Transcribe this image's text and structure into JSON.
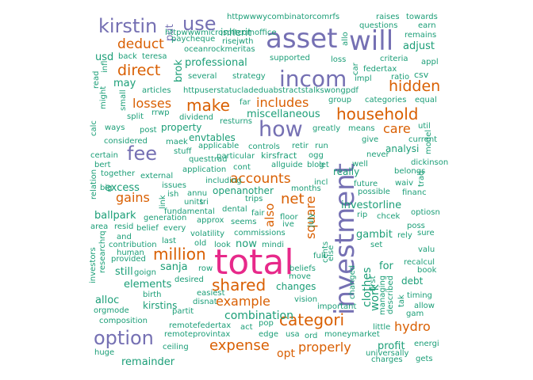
{
  "colors": {
    "teal": "#1b9e77",
    "orange": "#d95f02",
    "purple": "#7570b3",
    "pink": "#e7298a"
  },
  "words": [
    {
      "t": "total",
      "c": "pink"
    },
    {
      "t": "investment",
      "c": "purple"
    },
    {
      "t": "asset",
      "c": "purple"
    },
    {
      "t": "will",
      "c": "purple"
    },
    {
      "t": "incom",
      "c": "purple"
    },
    {
      "t": "how",
      "c": "purple"
    },
    {
      "t": "kirstin",
      "c": "purple"
    },
    {
      "t": "fee",
      "c": "purple"
    },
    {
      "t": "option",
      "c": "purple"
    },
    {
      "t": "use",
      "c": "purple"
    },
    {
      "t": "put",
      "c": "purple"
    },
    {
      "t": "million",
      "c": "orange"
    },
    {
      "t": "shared",
      "c": "orange"
    },
    {
      "t": "categori",
      "c": "orange"
    },
    {
      "t": "household",
      "c": "orange"
    },
    {
      "t": "hidden",
      "c": "orange"
    },
    {
      "t": "make",
      "c": "orange"
    },
    {
      "t": "direct",
      "c": "orange"
    },
    {
      "t": "deduct",
      "c": "orange"
    },
    {
      "t": "expense",
      "c": "orange"
    },
    {
      "t": "accounts",
      "c": "orange"
    },
    {
      "t": "net",
      "c": "orange"
    },
    {
      "t": "square",
      "c": "orange"
    },
    {
      "t": "includes",
      "c": "orange"
    },
    {
      "t": "losses",
      "c": "orange"
    },
    {
      "t": "gains",
      "c": "orange"
    },
    {
      "t": "example",
      "c": "orange"
    },
    {
      "t": "properly",
      "c": "orange"
    },
    {
      "t": "hydro",
      "c": "orange"
    },
    {
      "t": "care",
      "c": "orange"
    },
    {
      "t": "also",
      "c": "orange"
    },
    {
      "t": "opt",
      "c": "orange"
    },
    {
      "t": "profit",
      "c": "teal"
    },
    {
      "t": "httpwwwycombinatorcomrfs",
      "c": "teal"
    },
    {
      "t": "raises",
      "c": "teal"
    },
    {
      "t": "towards",
      "c": "teal"
    },
    {
      "t": "questions",
      "c": "teal"
    },
    {
      "t": "earn",
      "c": "teal"
    },
    {
      "t": "remains",
      "c": "teal"
    },
    {
      "t": "adjust",
      "c": "teal"
    },
    {
      "t": "inherit",
      "c": "teal"
    },
    {
      "t": "httpwwwmicrosoftcomoffice",
      "c": "teal"
    },
    {
      "t": "risejwth",
      "c": "teal"
    },
    {
      "t": "paycheque",
      "c": "teal"
    },
    {
      "t": "oceanrockmeritas",
      "c": "teal"
    },
    {
      "t": "usd",
      "c": "teal"
    },
    {
      "t": "back",
      "c": "teal"
    },
    {
      "t": "teresa",
      "c": "teal"
    },
    {
      "t": "infl",
      "c": "teal"
    },
    {
      "t": "professional",
      "c": "teal"
    },
    {
      "t": "supported",
      "c": "teal"
    },
    {
      "t": "loss",
      "c": "teal"
    },
    {
      "t": "criteria",
      "c": "teal"
    },
    {
      "t": "appl",
      "c": "teal"
    },
    {
      "t": "federtax",
      "c": "teal"
    },
    {
      "t": "several",
      "c": "teal"
    },
    {
      "t": "strategy",
      "c": "teal"
    },
    {
      "t": "impl",
      "c": "teal"
    },
    {
      "t": "ratio",
      "c": "teal"
    },
    {
      "t": "csv",
      "c": "teal"
    },
    {
      "t": "may",
      "c": "teal"
    },
    {
      "t": "articles",
      "c": "teal"
    },
    {
      "t": "httpuserstatucladeduabstractstalkswongpdf",
      "c": "teal"
    },
    {
      "t": "group",
      "c": "teal"
    },
    {
      "t": "categories",
      "c": "teal"
    },
    {
      "t": "equal",
      "c": "teal"
    },
    {
      "t": "far",
      "c": "teal"
    },
    {
      "t": "miscellaneous",
      "c": "teal"
    },
    {
      "t": "dividend",
      "c": "teal"
    },
    {
      "t": "resturns",
      "c": "teal"
    },
    {
      "t": "rrwp",
      "c": "teal"
    },
    {
      "t": "split",
      "c": "teal"
    },
    {
      "t": "property",
      "c": "teal"
    },
    {
      "t": "greatly",
      "c": "teal"
    },
    {
      "t": "means",
      "c": "teal"
    },
    {
      "t": "util",
      "c": "teal"
    },
    {
      "t": "ways",
      "c": "teal"
    },
    {
      "t": "post",
      "c": "teal"
    },
    {
      "t": "maek",
      "c": "teal"
    },
    {
      "t": "envtables",
      "c": "teal"
    },
    {
      "t": "give",
      "c": "teal"
    },
    {
      "t": "current",
      "c": "teal"
    },
    {
      "t": "considered",
      "c": "teal"
    },
    {
      "t": "stuff",
      "c": "teal"
    },
    {
      "t": "applicable",
      "c": "teal"
    },
    {
      "t": "controls",
      "c": "teal"
    },
    {
      "t": "retir",
      "c": "teal"
    },
    {
      "t": "run",
      "c": "teal"
    },
    {
      "t": "analysi",
      "c": "teal"
    },
    {
      "t": "certain",
      "c": "teal"
    },
    {
      "t": "questtrad",
      "c": "teal"
    },
    {
      "t": "particular",
      "c": "teal"
    },
    {
      "t": "kirsfract",
      "c": "teal"
    },
    {
      "t": "ogg",
      "c": "teal"
    },
    {
      "t": "never",
      "c": "teal"
    },
    {
      "t": "bert",
      "c": "teal"
    },
    {
      "t": "allguide",
      "c": "teal"
    },
    {
      "t": "blog",
      "c": "teal"
    },
    {
      "t": "let",
      "c": "teal"
    },
    {
      "t": "well",
      "c": "teal"
    },
    {
      "t": "dickinson",
      "c": "teal"
    },
    {
      "t": "application",
      "c": "teal"
    },
    {
      "t": "cont",
      "c": "teal"
    },
    {
      "t": "belongs",
      "c": "teal"
    },
    {
      "t": "together",
      "c": "teal"
    },
    {
      "t": "really",
      "c": "teal"
    },
    {
      "t": "external",
      "c": "teal"
    },
    {
      "t": "including",
      "c": "teal"
    },
    {
      "t": "incl",
      "c": "teal"
    },
    {
      "t": "future",
      "c": "teal"
    },
    {
      "t": "waiv",
      "c": "teal"
    },
    {
      "t": "excess",
      "c": "teal"
    },
    {
      "t": "openanother",
      "c": "teal"
    },
    {
      "t": "months",
      "c": "teal"
    },
    {
      "t": "big",
      "c": "teal"
    },
    {
      "t": "issues",
      "c": "teal"
    },
    {
      "t": "possible",
      "c": "teal"
    },
    {
      "t": "financ",
      "c": "teal"
    },
    {
      "t": "ish",
      "c": "teal"
    },
    {
      "t": "annu",
      "c": "teal"
    },
    {
      "t": "units",
      "c": "teal"
    },
    {
      "t": "tri",
      "c": "teal"
    },
    {
      "t": "trips",
      "c": "teal"
    },
    {
      "t": "investorline",
      "c": "teal"
    },
    {
      "t": "fundamental",
      "c": "teal"
    },
    {
      "t": "dental",
      "c": "teal"
    },
    {
      "t": "fair",
      "c": "teal"
    },
    {
      "t": "floor",
      "c": "teal"
    },
    {
      "t": "rip",
      "c": "teal"
    },
    {
      "t": "chcek",
      "c": "teal"
    },
    {
      "t": "optiosn",
      "c": "teal"
    },
    {
      "t": "ballpark",
      "c": "teal"
    },
    {
      "t": "generation",
      "c": "teal"
    },
    {
      "t": "approx",
      "c": "teal"
    },
    {
      "t": "seems",
      "c": "teal"
    },
    {
      "t": "ive",
      "c": "teal"
    },
    {
      "t": "poss",
      "c": "teal"
    },
    {
      "t": "area",
      "c": "teal"
    },
    {
      "t": "resid",
      "c": "teal"
    },
    {
      "t": "belief",
      "c": "teal"
    },
    {
      "t": "every",
      "c": "teal"
    },
    {
      "t": "gambit",
      "c": "teal"
    },
    {
      "t": "rely",
      "c": "teal"
    },
    {
      "t": "sure",
      "c": "teal"
    },
    {
      "t": "and",
      "c": "teal"
    },
    {
      "t": "volatility",
      "c": "teal"
    },
    {
      "t": "commissions",
      "c": "teal"
    },
    {
      "t": "contribution",
      "c": "teal"
    },
    {
      "t": "last",
      "c": "teal"
    },
    {
      "t": "old",
      "c": "teal"
    },
    {
      "t": "look",
      "c": "teal"
    },
    {
      "t": "now",
      "c": "teal"
    },
    {
      "t": "mindi",
      "c": "teal"
    },
    {
      "t": "set",
      "c": "teal"
    },
    {
      "t": "valu",
      "c": "teal"
    },
    {
      "t": "human",
      "c": "teal"
    },
    {
      "t": "provided",
      "c": "teal"
    },
    {
      "t": "sanja",
      "c": "teal"
    },
    {
      "t": "full",
      "c": "teal"
    },
    {
      "t": "recalcul",
      "c": "teal"
    },
    {
      "t": "goign",
      "c": "teal"
    },
    {
      "t": "still",
      "c": "teal"
    },
    {
      "t": "row",
      "c": "teal"
    },
    {
      "t": "beliefs",
      "c": "teal"
    },
    {
      "t": "for",
      "c": "teal"
    },
    {
      "t": "book",
      "c": "teal"
    },
    {
      "t": "elements",
      "c": "teal"
    },
    {
      "t": "desired",
      "c": "teal"
    },
    {
      "t": "move",
      "c": "teal"
    },
    {
      "t": "debt",
      "c": "teal"
    },
    {
      "t": "birth",
      "c": "teal"
    },
    {
      "t": "changes",
      "c": "teal"
    },
    {
      "t": "alloc",
      "c": "teal"
    },
    {
      "t": "easiest",
      "c": "teal"
    },
    {
      "t": "vision",
      "c": "teal"
    },
    {
      "t": "timing",
      "c": "teal"
    },
    {
      "t": "orgmode",
      "c": "teal"
    },
    {
      "t": "kirstins",
      "c": "teal"
    },
    {
      "t": "disnat",
      "c": "teal"
    },
    {
      "t": "important",
      "c": "teal"
    },
    {
      "t": "allow",
      "c": "teal"
    },
    {
      "t": "partit",
      "c": "teal"
    },
    {
      "t": "combination",
      "c": "teal"
    },
    {
      "t": "gam",
      "c": "teal"
    },
    {
      "t": "composition",
      "c": "teal"
    },
    {
      "t": "remotefedertax",
      "c": "teal"
    },
    {
      "t": "act",
      "c": "teal"
    },
    {
      "t": "pop",
      "c": "teal"
    },
    {
      "t": "little",
      "c": "teal"
    },
    {
      "t": "huge",
      "c": "teal"
    },
    {
      "t": "remoteprovintax",
      "c": "teal"
    },
    {
      "t": "edge",
      "c": "teal"
    },
    {
      "t": "usa",
      "c": "teal"
    },
    {
      "t": "ord",
      "c": "teal"
    },
    {
      "t": "moneymarket",
      "c": "teal"
    },
    {
      "t": "energi",
      "c": "teal"
    },
    {
      "t": "ceiling",
      "c": "teal"
    },
    {
      "t": "universally",
      "c": "teal"
    },
    {
      "t": "remainder",
      "c": "teal"
    },
    {
      "t": "charges",
      "c": "teal"
    },
    {
      "t": "gets",
      "c": "teal"
    },
    {
      "t": "allo",
      "c": "teal"
    },
    {
      "t": "car",
      "c": "teal"
    },
    {
      "t": "brok",
      "c": "teal"
    },
    {
      "t": "read",
      "c": "teal"
    },
    {
      "t": "might",
      "c": "teal"
    },
    {
      "t": "small",
      "c": "teal"
    },
    {
      "t": "calc",
      "c": "teal"
    },
    {
      "t": "relation",
      "c": "teal"
    },
    {
      "t": "investors",
      "c": "teal"
    },
    {
      "t": "researchrq",
      "c": "teal"
    },
    {
      "t": "link",
      "c": "teal"
    },
    {
      "t": "july",
      "c": "teal"
    },
    {
      "t": "else",
      "c": "teal"
    },
    {
      "t": "cents",
      "c": "teal"
    },
    {
      "t": "changed",
      "c": "teal"
    },
    {
      "t": "first",
      "c": "teal"
    },
    {
      "t": "clothes",
      "c": "teal"
    },
    {
      "t": "work",
      "c": "teal"
    },
    {
      "t": "managing",
      "c": "teal"
    },
    {
      "t": "described",
      "c": "teal"
    },
    {
      "t": "tak",
      "c": "teal"
    },
    {
      "t": "model",
      "c": "teal"
    },
    {
      "t": "trad",
      "c": "teal"
    }
  ]
}
